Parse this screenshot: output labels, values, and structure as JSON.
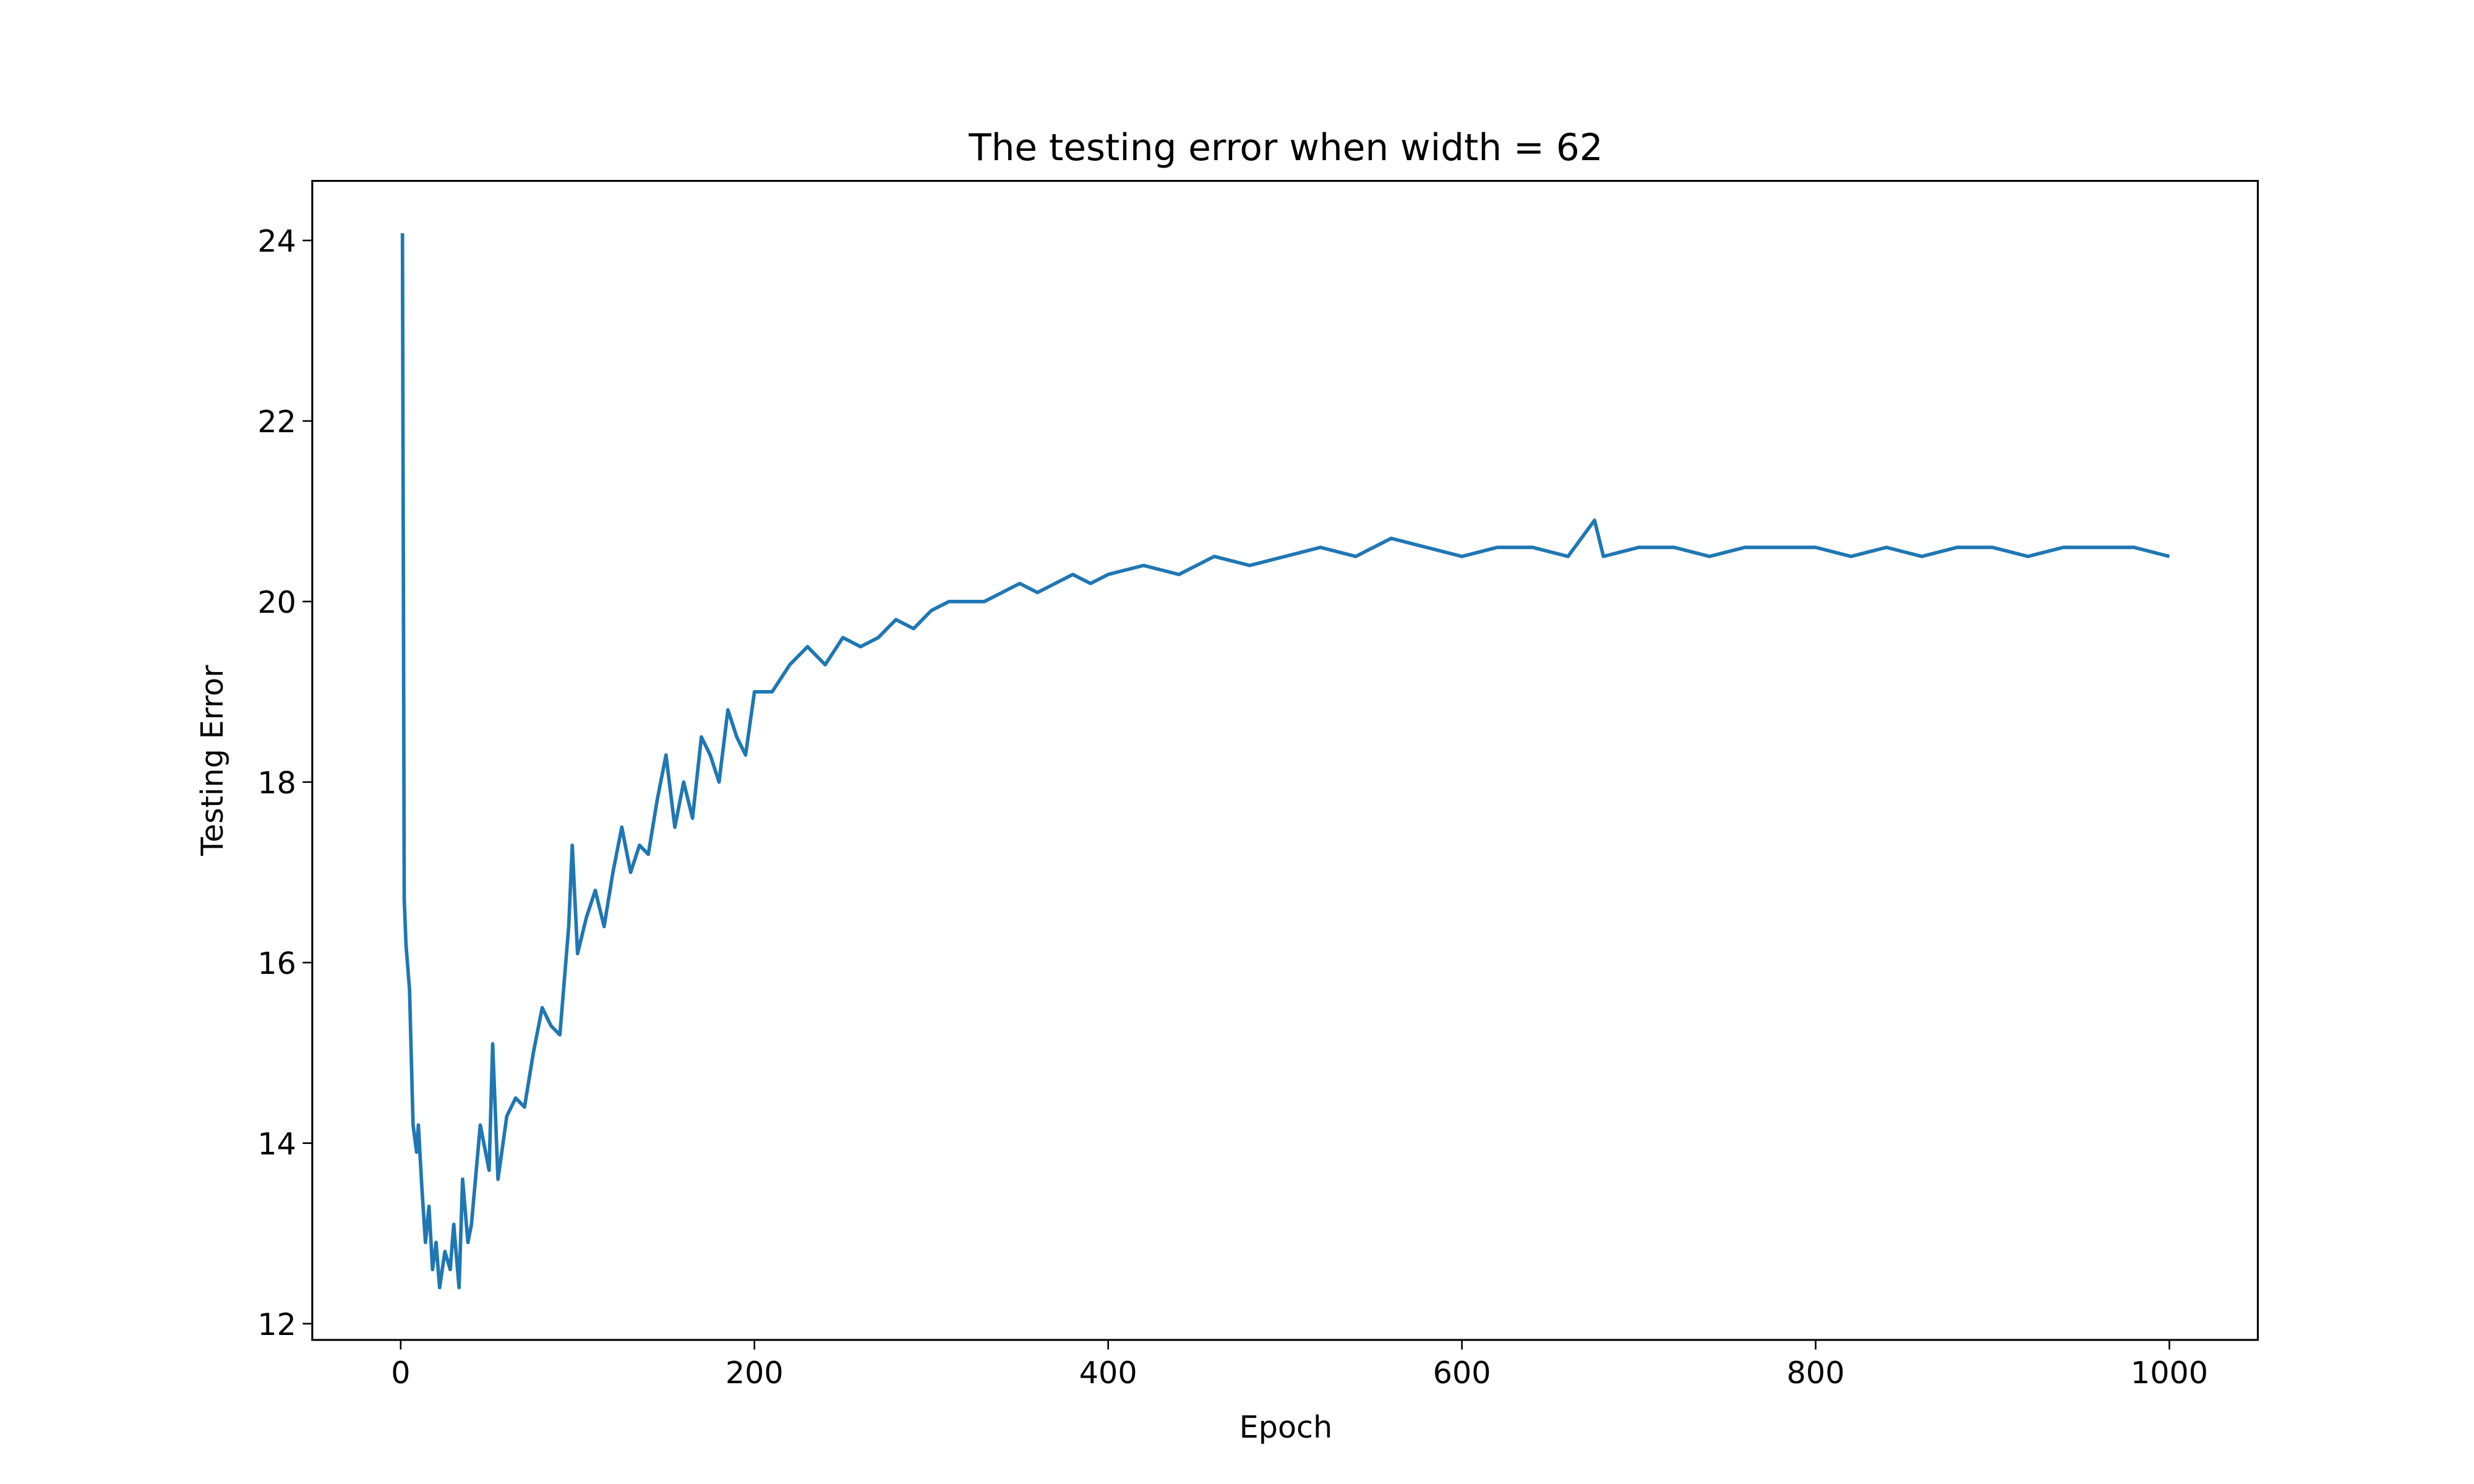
{
  "chart_data": {
    "type": "line",
    "title": "The testing error when width = 62",
    "x_label": "Epoch",
    "y_label": "Testing Error",
    "x": [
      1,
      2,
      3,
      5,
      7,
      9,
      10,
      12,
      14,
      16,
      18,
      20,
      22,
      25,
      28,
      30,
      33,
      35,
      38,
      40,
      45,
      50,
      52,
      55,
      60,
      65,
      70,
      75,
      80,
      85,
      90,
      95,
      97,
      100,
      105,
      110,
      115,
      120,
      125,
      130,
      135,
      140,
      145,
      150,
      155,
      160,
      165,
      170,
      175,
      180,
      185,
      190,
      195,
      200,
      210,
      220,
      230,
      240,
      250,
      260,
      270,
      280,
      290,
      300,
      310,
      320,
      330,
      340,
      350,
      360,
      370,
      380,
      390,
      400,
      420,
      440,
      460,
      480,
      500,
      520,
      540,
      560,
      580,
      600,
      620,
      640,
      660,
      675,
      680,
      700,
      720,
      740,
      760,
      780,
      800,
      820,
      840,
      860,
      880,
      900,
      920,
      940,
      960,
      980,
      1000
    ],
    "series": [
      {
        "name": "Testing Error",
        "color": "#1f77b4",
        "values": [
          24.08,
          16.7,
          16.2,
          15.7,
          14.2,
          13.9,
          14.2,
          13.5,
          12.9,
          13.3,
          12.6,
          12.9,
          12.4,
          12.8,
          12.6,
          13.1,
          12.4,
          13.6,
          12.9,
          13.1,
          14.2,
          13.7,
          15.1,
          13.6,
          14.3,
          14.5,
          14.4,
          15.0,
          15.5,
          15.3,
          15.2,
          16.4,
          17.3,
          16.1,
          16.5,
          16.8,
          16.4,
          17.0,
          17.5,
          17.0,
          17.3,
          17.2,
          17.8,
          18.3,
          17.5,
          18.0,
          17.6,
          18.5,
          18.3,
          18.0,
          18.8,
          18.5,
          18.3,
          19.0,
          19.0,
          19.3,
          19.5,
          19.3,
          19.6,
          19.5,
          19.6,
          19.8,
          19.7,
          19.9,
          20.0,
          20.0,
          20.0,
          20.1,
          20.2,
          20.1,
          20.2,
          20.3,
          20.2,
          20.3,
          20.4,
          20.3,
          20.5,
          20.4,
          20.5,
          20.6,
          20.5,
          20.7,
          20.6,
          20.5,
          20.6,
          20.6,
          20.5,
          20.9,
          20.5,
          20.6,
          20.6,
          20.5,
          20.6,
          20.6,
          20.6,
          20.5,
          20.6,
          20.5,
          20.6,
          20.6,
          20.5,
          20.6,
          20.6,
          20.6,
          20.5
        ]
      }
    ],
    "xlim": [
      -50,
      1050
    ],
    "xticks": [
      0,
      200,
      400,
      600,
      800,
      1000
    ],
    "ylim": [
      11.82,
      24.66
    ],
    "yticks": [
      12,
      14,
      16,
      18,
      20,
      22,
      24
    ]
  }
}
